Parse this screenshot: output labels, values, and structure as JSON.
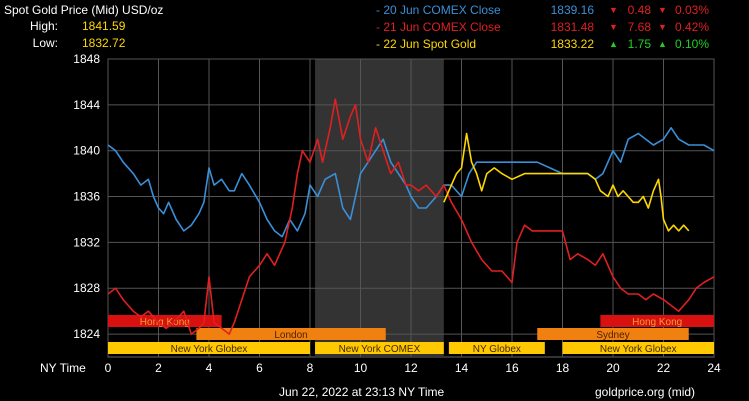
{
  "header": {
    "title": "Spot Gold Price (Mid) USD/oz",
    "high_label": "High:",
    "high_value": "1841.59",
    "low_label": "Low:",
    "low_value": "1832.72"
  },
  "legend": [
    {
      "name": "- 20 Jun COMEX Close",
      "price": "1839.16",
      "change": "0.48",
      "pct": "0.03%",
      "color": "#3a8fd8",
      "dir": "down"
    },
    {
      "name": "- 21 Jun COMEX Close",
      "price": "1831.48",
      "change": "7.68",
      "pct": "0.42%",
      "color": "#e02020",
      "dir": "down"
    },
    {
      "name": "- 22 Jun Spot Gold",
      "price": "1833.22",
      "change": "1.75",
      "pct": "0.10%",
      "color": "#ffd700",
      "dir": "up"
    }
  ],
  "footer": {
    "timestamp": "Jun 22, 2022 at 23:13 NY Time",
    "source": "goldprice.org (mid)",
    "x_axis_label": "NY Time"
  },
  "sessions": [
    {
      "label": "Hong Kong",
      "start": 0,
      "end": 4.5,
      "row": 0,
      "color": "#d81010",
      "text_color": "#f0a030"
    },
    {
      "label": "Hong Kong",
      "start": 19.5,
      "end": 24,
      "row": 0,
      "color": "#d81010",
      "text_color": "#f0a030"
    },
    {
      "label": "London",
      "start": 3.5,
      "end": 11,
      "row": 1,
      "color": "#f08010",
      "text_color": "#502000"
    },
    {
      "label": "Sydney",
      "start": 17,
      "end": 23,
      "row": 1,
      "color": "#f08010",
      "text_color": "#502000"
    },
    {
      "label": "New York Globex",
      "start": 0,
      "end": 8,
      "row": 2,
      "color": "#ffc800",
      "text_color": "#402800"
    },
    {
      "label": "New York COMEX",
      "start": 8.2,
      "end": 13.3,
      "row": 2,
      "color": "#ffc800",
      "text_color": "#402800"
    },
    {
      "label": "NY Globex",
      "start": 13.5,
      "end": 17.3,
      "row": 2,
      "color": "#ffc800",
      "text_color": "#402800"
    },
    {
      "label": "New York Globex",
      "start": 18,
      "end": 24,
      "row": 2,
      "color": "#ffc800",
      "text_color": "#402800"
    }
  ],
  "chart_data": {
    "type": "line",
    "xlim": [
      0,
      24
    ],
    "ylim": [
      1822,
      1848
    ],
    "x_ticks": [
      0,
      2,
      4,
      6,
      8,
      10,
      12,
      14,
      16,
      18,
      20,
      22,
      24
    ],
    "y_ticks": [
      1824,
      1828,
      1832,
      1836,
      1840,
      1844,
      1848
    ],
    "comex_session": [
      8.2,
      13.3
    ],
    "grid": true,
    "series": [
      {
        "name": "20 Jun COMEX Close",
        "color": "#3a8fd8",
        "x": [
          0,
          0.3,
          0.6,
          1,
          1.3,
          1.6,
          1.8,
          2,
          2.2,
          2.4,
          2.7,
          3,
          3.3,
          3.6,
          3.8,
          4,
          4.2,
          4.5,
          4.8,
          5,
          5.3,
          5.6,
          6,
          6.3,
          6.6,
          6.9,
          7.2,
          7.5,
          7.8,
          8,
          8.3,
          8.6,
          9,
          9.3,
          9.6,
          9.8,
          10,
          10.3,
          10.6,
          10.9,
          11.2,
          11.5,
          11.8,
          12,
          12.3,
          12.6,
          13,
          13.3,
          13.6,
          14,
          14.3,
          14.6,
          15,
          15.5,
          16,
          16.5,
          17,
          17.5,
          18,
          18.5,
          19,
          19.3,
          19.6,
          20,
          20.3,
          20.6,
          21,
          21.3,
          21.6,
          22,
          22.3,
          22.6,
          23,
          23.3,
          23.6,
          24
        ],
        "y": [
          1840.5,
          1840,
          1839,
          1838,
          1837,
          1837.5,
          1836,
          1835,
          1834.5,
          1835.5,
          1834,
          1833,
          1833.5,
          1834.5,
          1835.5,
          1838.5,
          1837,
          1837.5,
          1836.5,
          1836.5,
          1838,
          1837,
          1835.5,
          1834,
          1833,
          1832.5,
          1834,
          1833,
          1834.5,
          1837,
          1836,
          1837.5,
          1838,
          1835,
          1834,
          1836,
          1838,
          1839,
          1840,
          1841,
          1839,
          1838,
          1837,
          1836,
          1835,
          1835,
          1836,
          1837,
          1837,
          1836,
          1838,
          1839,
          1839,
          1839,
          1839,
          1839,
          1839,
          1838.5,
          1838,
          1838,
          1838,
          1837.5,
          1838,
          1840,
          1839,
          1841,
          1841.5,
          1841,
          1840.5,
          1841,
          1842,
          1841,
          1840.5,
          1840.5,
          1840.5,
          1840
        ]
      },
      {
        "name": "21 Jun COMEX Close",
        "color": "#e02020",
        "x": [
          0,
          0.3,
          0.6,
          1,
          1.3,
          1.6,
          2,
          2.3,
          2.6,
          3,
          3.3,
          3.6,
          3.8,
          4,
          4.2,
          4.5,
          4.8,
          5,
          5.3,
          5.6,
          6,
          6.3,
          6.6,
          7,
          7.3,
          7.5,
          7.7,
          8,
          8.3,
          8.5,
          8.8,
          9,
          9.3,
          9.6,
          9.8,
          10,
          10.3,
          10.6,
          10.9,
          11.2,
          11.5,
          11.8,
          12,
          12.3,
          12.6,
          13,
          13.3,
          13.6,
          14,
          14.4,
          14.8,
          15.2,
          15.6,
          16,
          16.2,
          16.5,
          16.8,
          17,
          17.5,
          18,
          18.3,
          18.6,
          19,
          19.3,
          19.6,
          20,
          20.3,
          20.6,
          21,
          21.3,
          21.6,
          22,
          22.3,
          22.6,
          23,
          23.3,
          23.6,
          24
        ],
        "y": [
          1827.5,
          1828,
          1827,
          1826,
          1825.5,
          1826,
          1825,
          1824.5,
          1825,
          1826,
          1824,
          1824.5,
          1825,
          1829,
          1825,
          1824.5,
          1824,
          1825,
          1827,
          1829,
          1830,
          1831,
          1830,
          1832,
          1835,
          1838,
          1840,
          1839,
          1841,
          1839,
          1842,
          1844.5,
          1841,
          1843,
          1844,
          1841,
          1839,
          1842,
          1840,
          1838,
          1839,
          1837,
          1837,
          1836.5,
          1837,
          1836,
          1837,
          1835.5,
          1834,
          1832,
          1830.5,
          1829.5,
          1829.5,
          1828.5,
          1832,
          1833.5,
          1833,
          1833,
          1833,
          1833,
          1830.5,
          1831,
          1830.5,
          1830,
          1831,
          1829,
          1828,
          1827.5,
          1827.5,
          1827,
          1827.5,
          1827,
          1826.5,
          1826,
          1827,
          1828,
          1828.5,
          1829
        ]
      },
      {
        "name": "22 Jun Spot Gold",
        "color": "#ffd700",
        "x": [
          13.3,
          13.6,
          13.8,
          14,
          14.2,
          14.4,
          14.6,
          14.8,
          15,
          15.3,
          15.6,
          16,
          16.5,
          17,
          17.5,
          18,
          18.5,
          19,
          19.3,
          19.5,
          19.8,
          20,
          20.2,
          20.4,
          20.6,
          20.8,
          21,
          21.2,
          21.4,
          21.6,
          21.8,
          21.9,
          22,
          22.2,
          22.4,
          22.6,
          22.8,
          23
        ],
        "y": [
          1835.5,
          1837,
          1838,
          1838.5,
          1841.5,
          1839,
          1838,
          1836.5,
          1838,
          1838.5,
          1838,
          1837.5,
          1838,
          1838,
          1838,
          1838,
          1838,
          1838,
          1837.5,
          1836.5,
          1836,
          1837,
          1836,
          1836.5,
          1836,
          1835.5,
          1835.5,
          1836,
          1835,
          1836.5,
          1837.5,
          1836,
          1834,
          1833,
          1833.5,
          1833,
          1833.5,
          1833
        ]
      }
    ]
  }
}
